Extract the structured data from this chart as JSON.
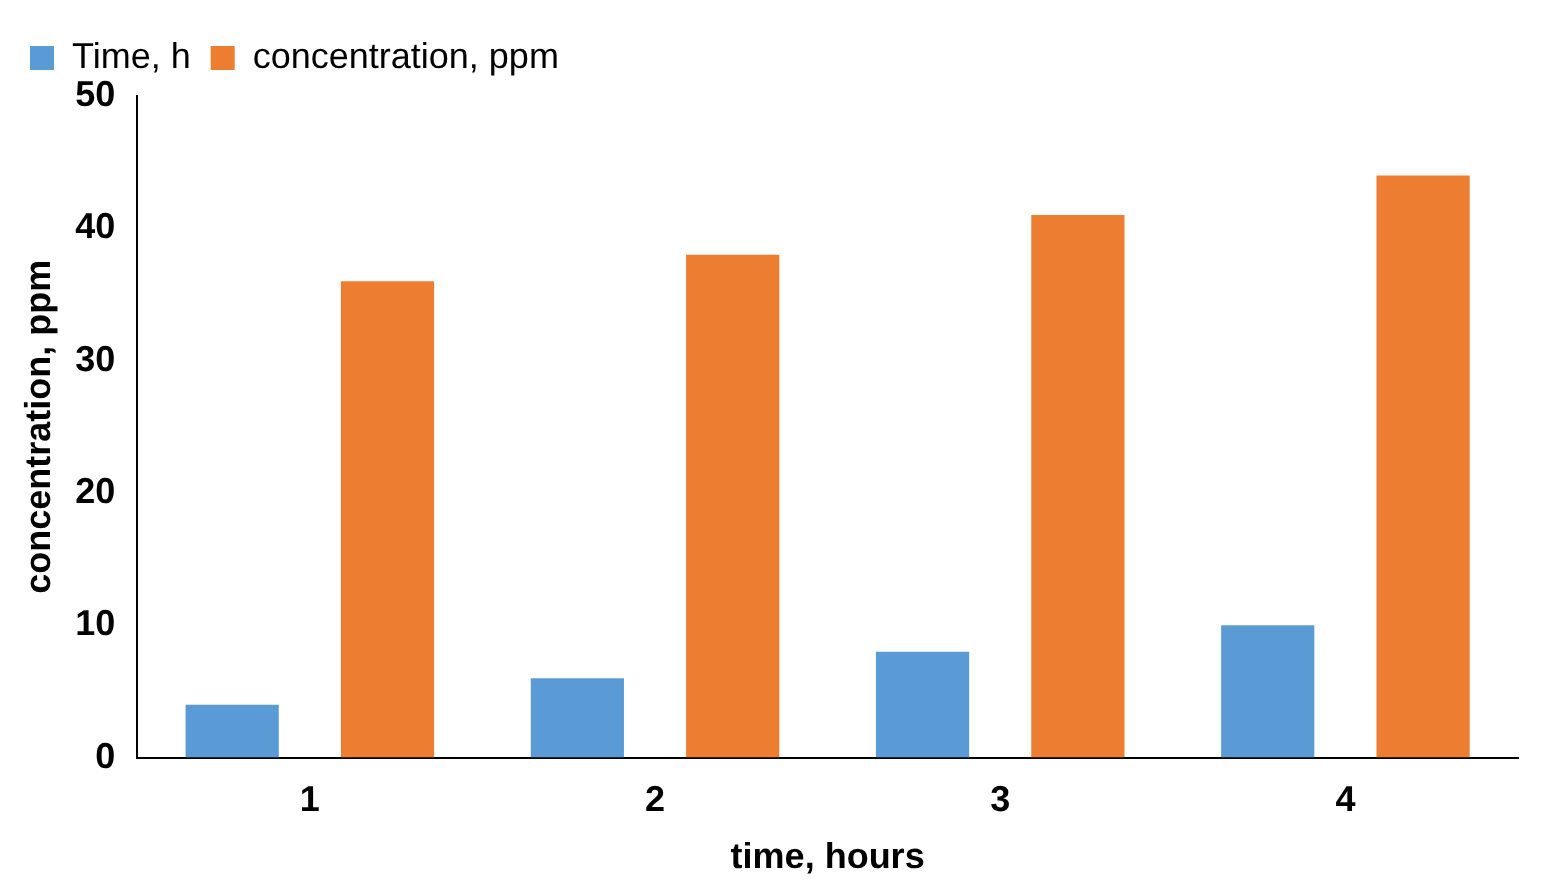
{
  "chart_data": {
    "type": "bar",
    "xlabel": "time, hours",
    "ylabel": "concentration, ppm",
    "categories": [
      "1",
      "2",
      "3",
      "4"
    ],
    "series": [
      {
        "name": "Time, h",
        "color": "#5b9bd5",
        "values": [
          4,
          6,
          8,
          10
        ]
      },
      {
        "name": "concentration, ppm",
        "color": "#ed7d31",
        "values": [
          36,
          38,
          41,
          44
        ]
      }
    ],
    "ylim": [
      0,
      50
    ],
    "yticks": [
      0,
      10,
      20,
      30,
      40,
      50
    ],
    "grid": false,
    "legend": "top left"
  }
}
